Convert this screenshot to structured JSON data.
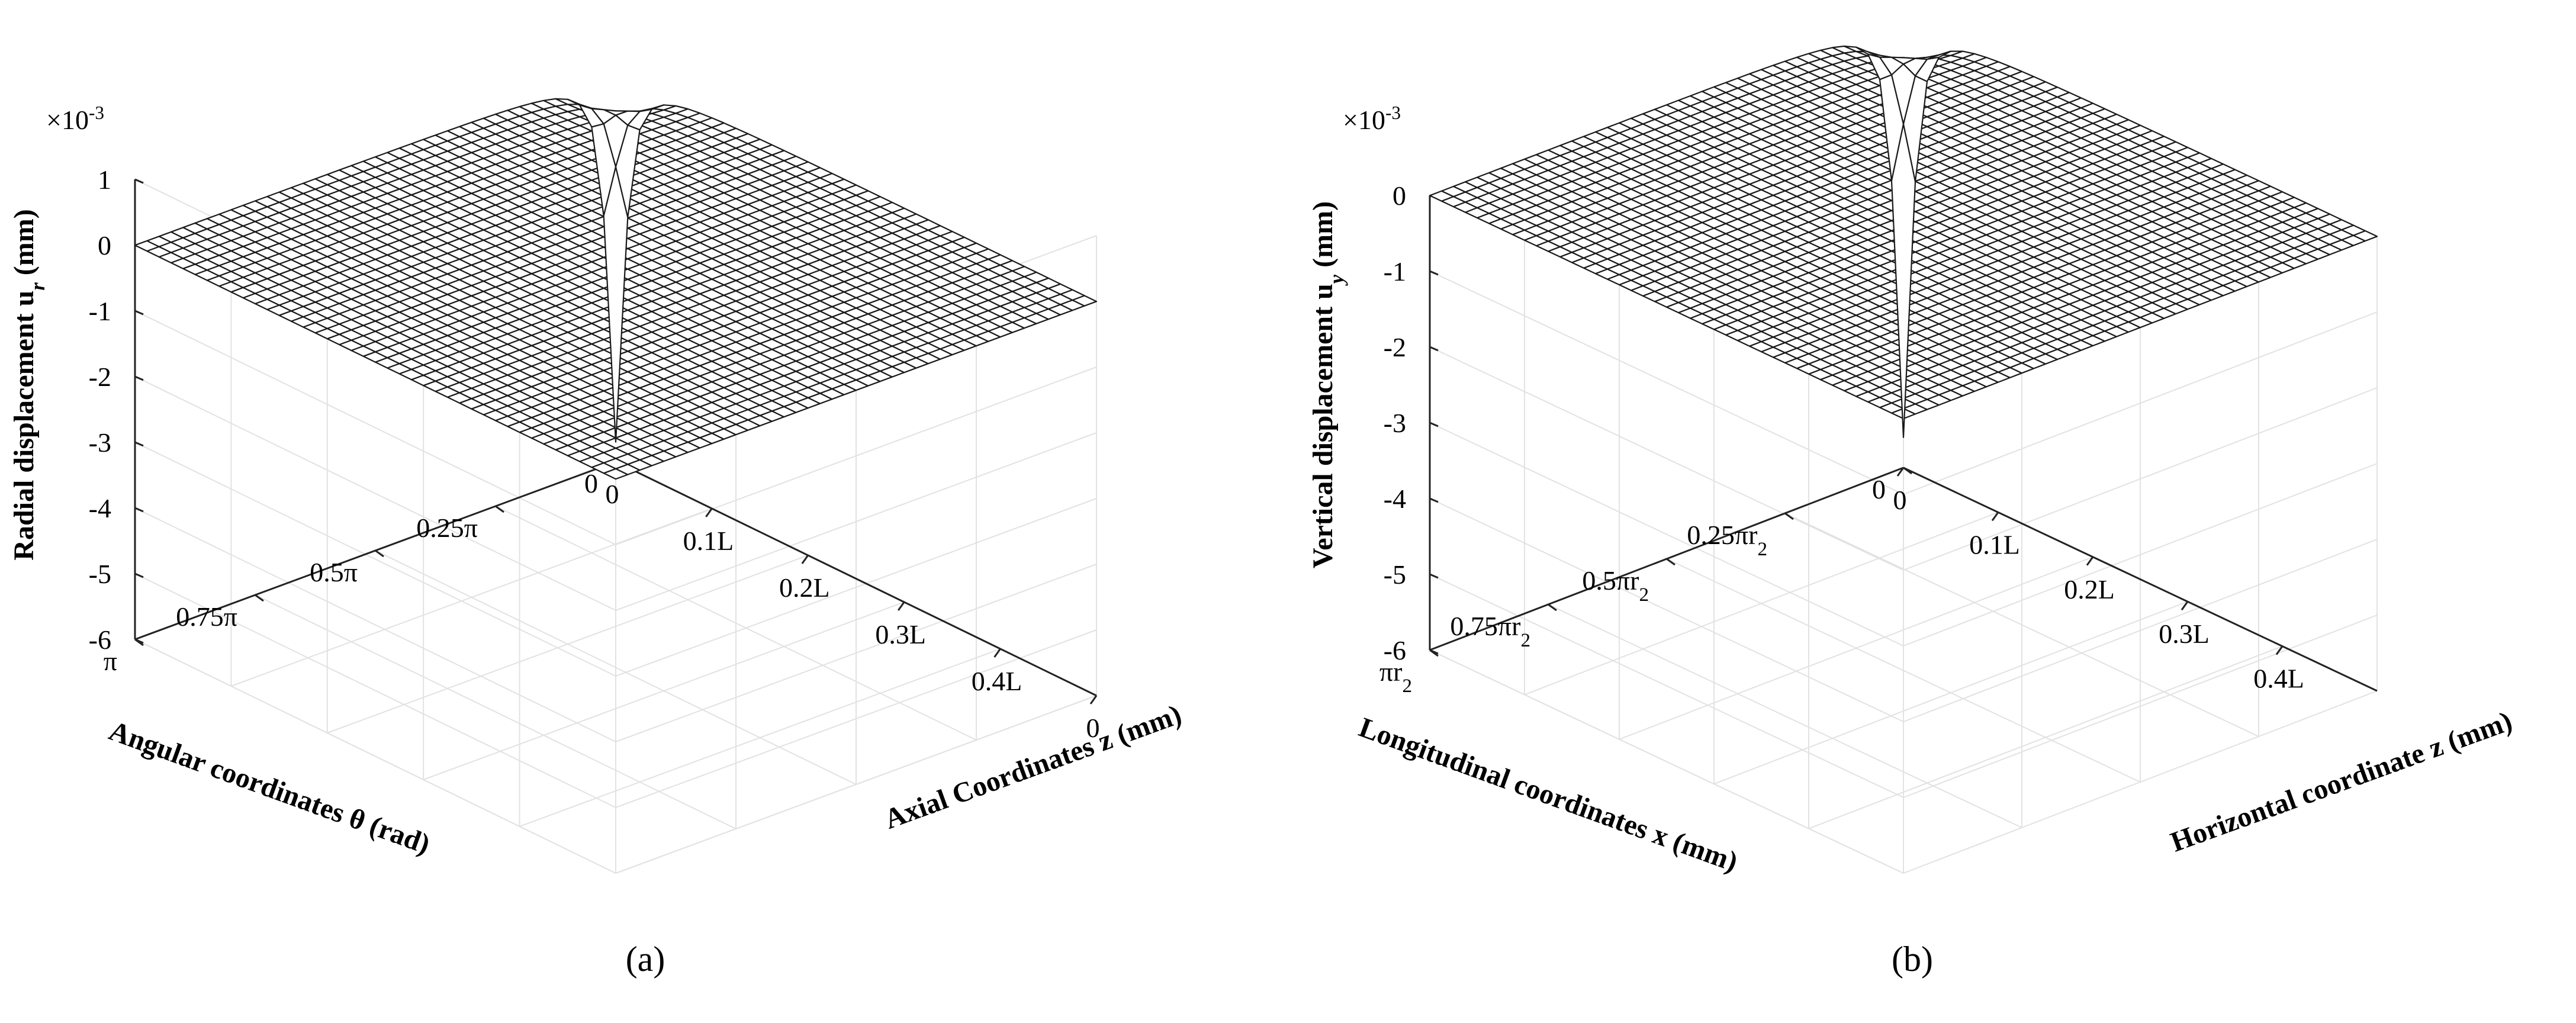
{
  "chart_data": [
    {
      "type": "surface",
      "caption_pre": "(",
      "caption_letter": "a",
      "caption_post": ")",
      "exponent": "×10-3",
      "zlabel": {
        "text": "Radial displacement u",
        "sub": "r",
        "unit": " (mm)"
      },
      "xlabel": {
        "text": "Angular coordinates θ (rad)"
      },
      "ylabel": {
        "text": "Axial Coordinates z (mm)"
      },
      "zticks": [
        1,
        0,
        -1,
        -2,
        -3,
        -4,
        -5,
        -6
      ],
      "zlim": [
        -6,
        1
      ],
      "xticks": [
        {
          "v": 0,
          "t": "0",
          "sub": ""
        },
        {
          "v": 0.25,
          "t": "0.25π",
          "sub": ""
        },
        {
          "v": 0.5,
          "t": "0.5π",
          "sub": ""
        },
        {
          "v": 0.75,
          "t": "0.75π",
          "sub": ""
        },
        {
          "v": 1,
          "t": "π",
          "sub": ""
        }
      ],
      "yticks": [
        {
          "v": 0,
          "t": "0"
        },
        {
          "v": 0.2,
          "t": "0.1L"
        },
        {
          "v": 0.4,
          "t": "0.2L"
        },
        {
          "v": 0.6,
          "t": "0.3L"
        },
        {
          "v": 0.8,
          "t": "0.4L"
        },
        {
          "v": 1,
          "t": "0"
        }
      ],
      "surface_shape": "flat near 0 with a sharp downward spike at θ = 0, z = 0",
      "peak_value": -5.7,
      "mesh_size": 40
    },
    {
      "type": "surface",
      "caption_pre": "(",
      "caption_letter": "b",
      "caption_post": ")",
      "exponent": "×10-3",
      "zlabel": {
        "text": "Vertical displacement u",
        "sub": "y",
        "unit": " (mm)"
      },
      "xlabel": {
        "text": "Longitudinal coordinates x (mm)"
      },
      "ylabel": {
        "text": "Horizontal coordinate z (mm)"
      },
      "zticks": [
        0,
        -1,
        -2,
        -3,
        -4,
        -5,
        -6
      ],
      "zlim": [
        -6,
        0
      ],
      "xticks": [
        {
          "v": 0,
          "t": "0",
          "sub": ""
        },
        {
          "v": 0.25,
          "t": "0.25πr",
          "sub": "2"
        },
        {
          "v": 0.5,
          "t": "0.5πr",
          "sub": "2"
        },
        {
          "v": 0.75,
          "t": "0.75πr",
          "sub": "2"
        },
        {
          "v": 1,
          "t": "πr",
          "sub": "2"
        }
      ],
      "yticks": [
        {
          "v": 0,
          "t": "0"
        },
        {
          "v": 0.2,
          "t": "0.1L"
        },
        {
          "v": 0.4,
          "t": "0.2L"
        },
        {
          "v": 0.6,
          "t": "0.3L"
        },
        {
          "v": 0.8,
          "t": "0.4L"
        }
      ],
      "surface_shape": "flat near 0 with a sharp downward spike at x = 0, z = 0",
      "peak_value": -5.6,
      "mesh_size": 40
    }
  ]
}
